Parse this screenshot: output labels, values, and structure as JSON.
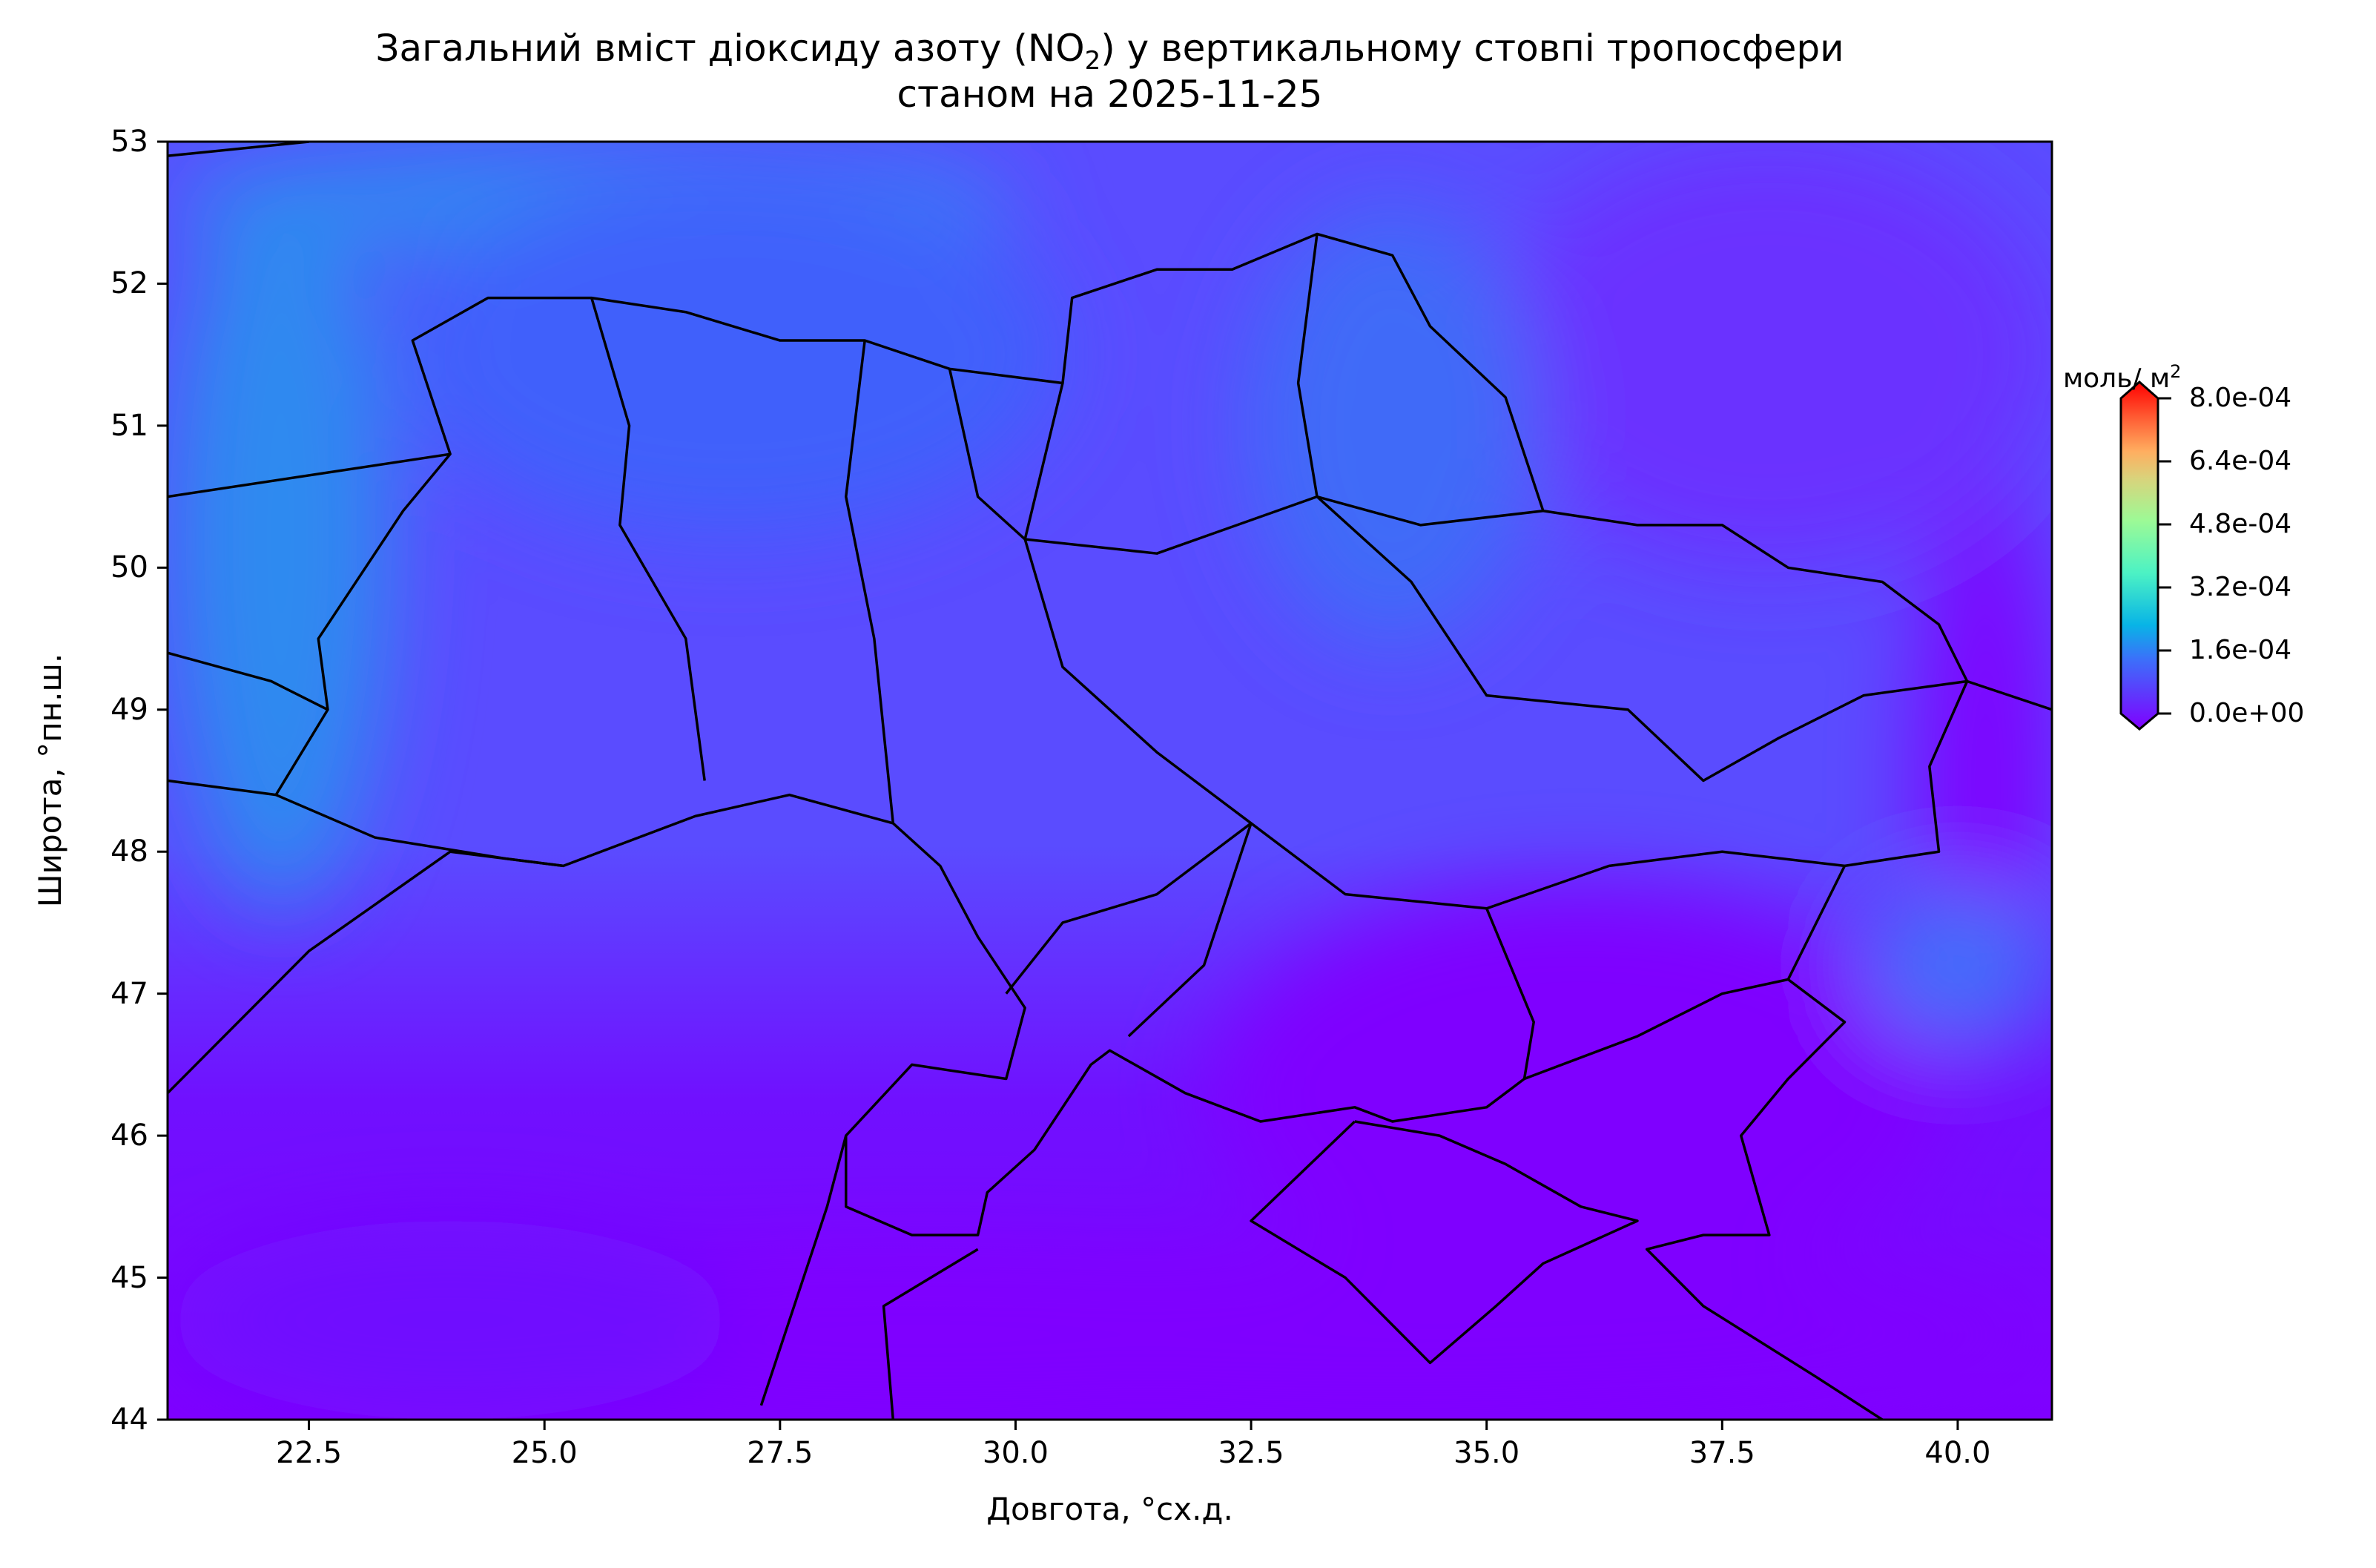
{
  "chart_data": {
    "type": "heatmap",
    "title_line1_pre": "Загальний вміст діоксиду азоту (NO",
    "title_sub": "2",
    "title_line1_post": ") у вертикальному стовпі тропосфери",
    "title_line2": "станом на 2025-11-25",
    "xlabel": "Довгота, °сх.д.",
    "ylabel": "Широта, °пн.ш.",
    "xlim": [
      21,
      41
    ],
    "ylim": [
      44,
      53
    ],
    "xticks": [
      "22.5",
      "25.0",
      "27.5",
      "30.0",
      "32.5",
      "35.0",
      "37.5",
      "40.0"
    ],
    "yticks": [
      "44",
      "45",
      "46",
      "47",
      "48",
      "49",
      "50",
      "51",
      "52",
      "53"
    ],
    "colorbar": {
      "unit_pre": "моль/ м",
      "unit_sup": "2",
      "colormap": "rainbow",
      "range": [
        0,
        0.0008
      ],
      "extend": "both",
      "ticks": [
        "0.0e+00",
        "1.6e-04",
        "3.2e-04",
        "4.8e-04",
        "6.4e-04",
        "8.0e-04"
      ]
    },
    "field_description_colors": {
      "low": "#7f00ff",
      "medium": "#5a4cff",
      "high_northwest": "#2d8af0"
    }
  }
}
